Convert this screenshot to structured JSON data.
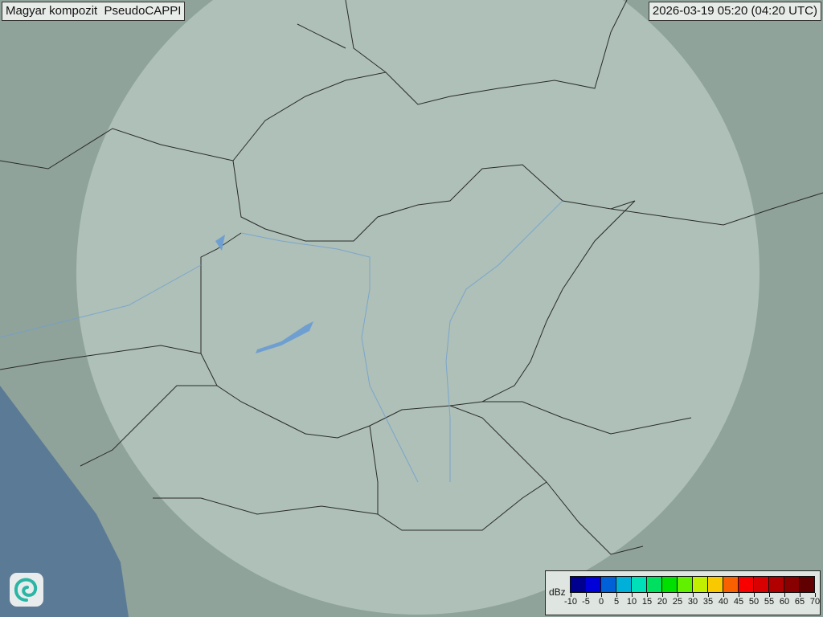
{
  "header": {
    "title": "Magyar kompozit  PseudoCAPPI",
    "timestamp": "2026-03-19 05:20 (04:20 UTC)"
  },
  "map": {
    "land_color": "#8fa39a",
    "coverage_color": "#c9d8d2",
    "sea_color": "#5b7a96",
    "border_color": "#2a2a2a",
    "river_color": "#6f9fd0"
  },
  "legend": {
    "unit": "dBz",
    "ticks": [
      "-10",
      "-5",
      "0",
      "5",
      "10",
      "15",
      "20",
      "25",
      "30",
      "35",
      "40",
      "45",
      "50",
      "55",
      "60",
      "65",
      "70"
    ],
    "colors": [
      "#00008f",
      "#0000d8",
      "#0060d8",
      "#00b0d8",
      "#00e0b8",
      "#00e060",
      "#00e000",
      "#60f000",
      "#c0f000",
      "#f8c800",
      "#f86000",
      "#f80000",
      "#d80000",
      "#b00000",
      "#880000",
      "#600000"
    ]
  },
  "logo": {
    "icon": "swirl-logo-icon"
  }
}
